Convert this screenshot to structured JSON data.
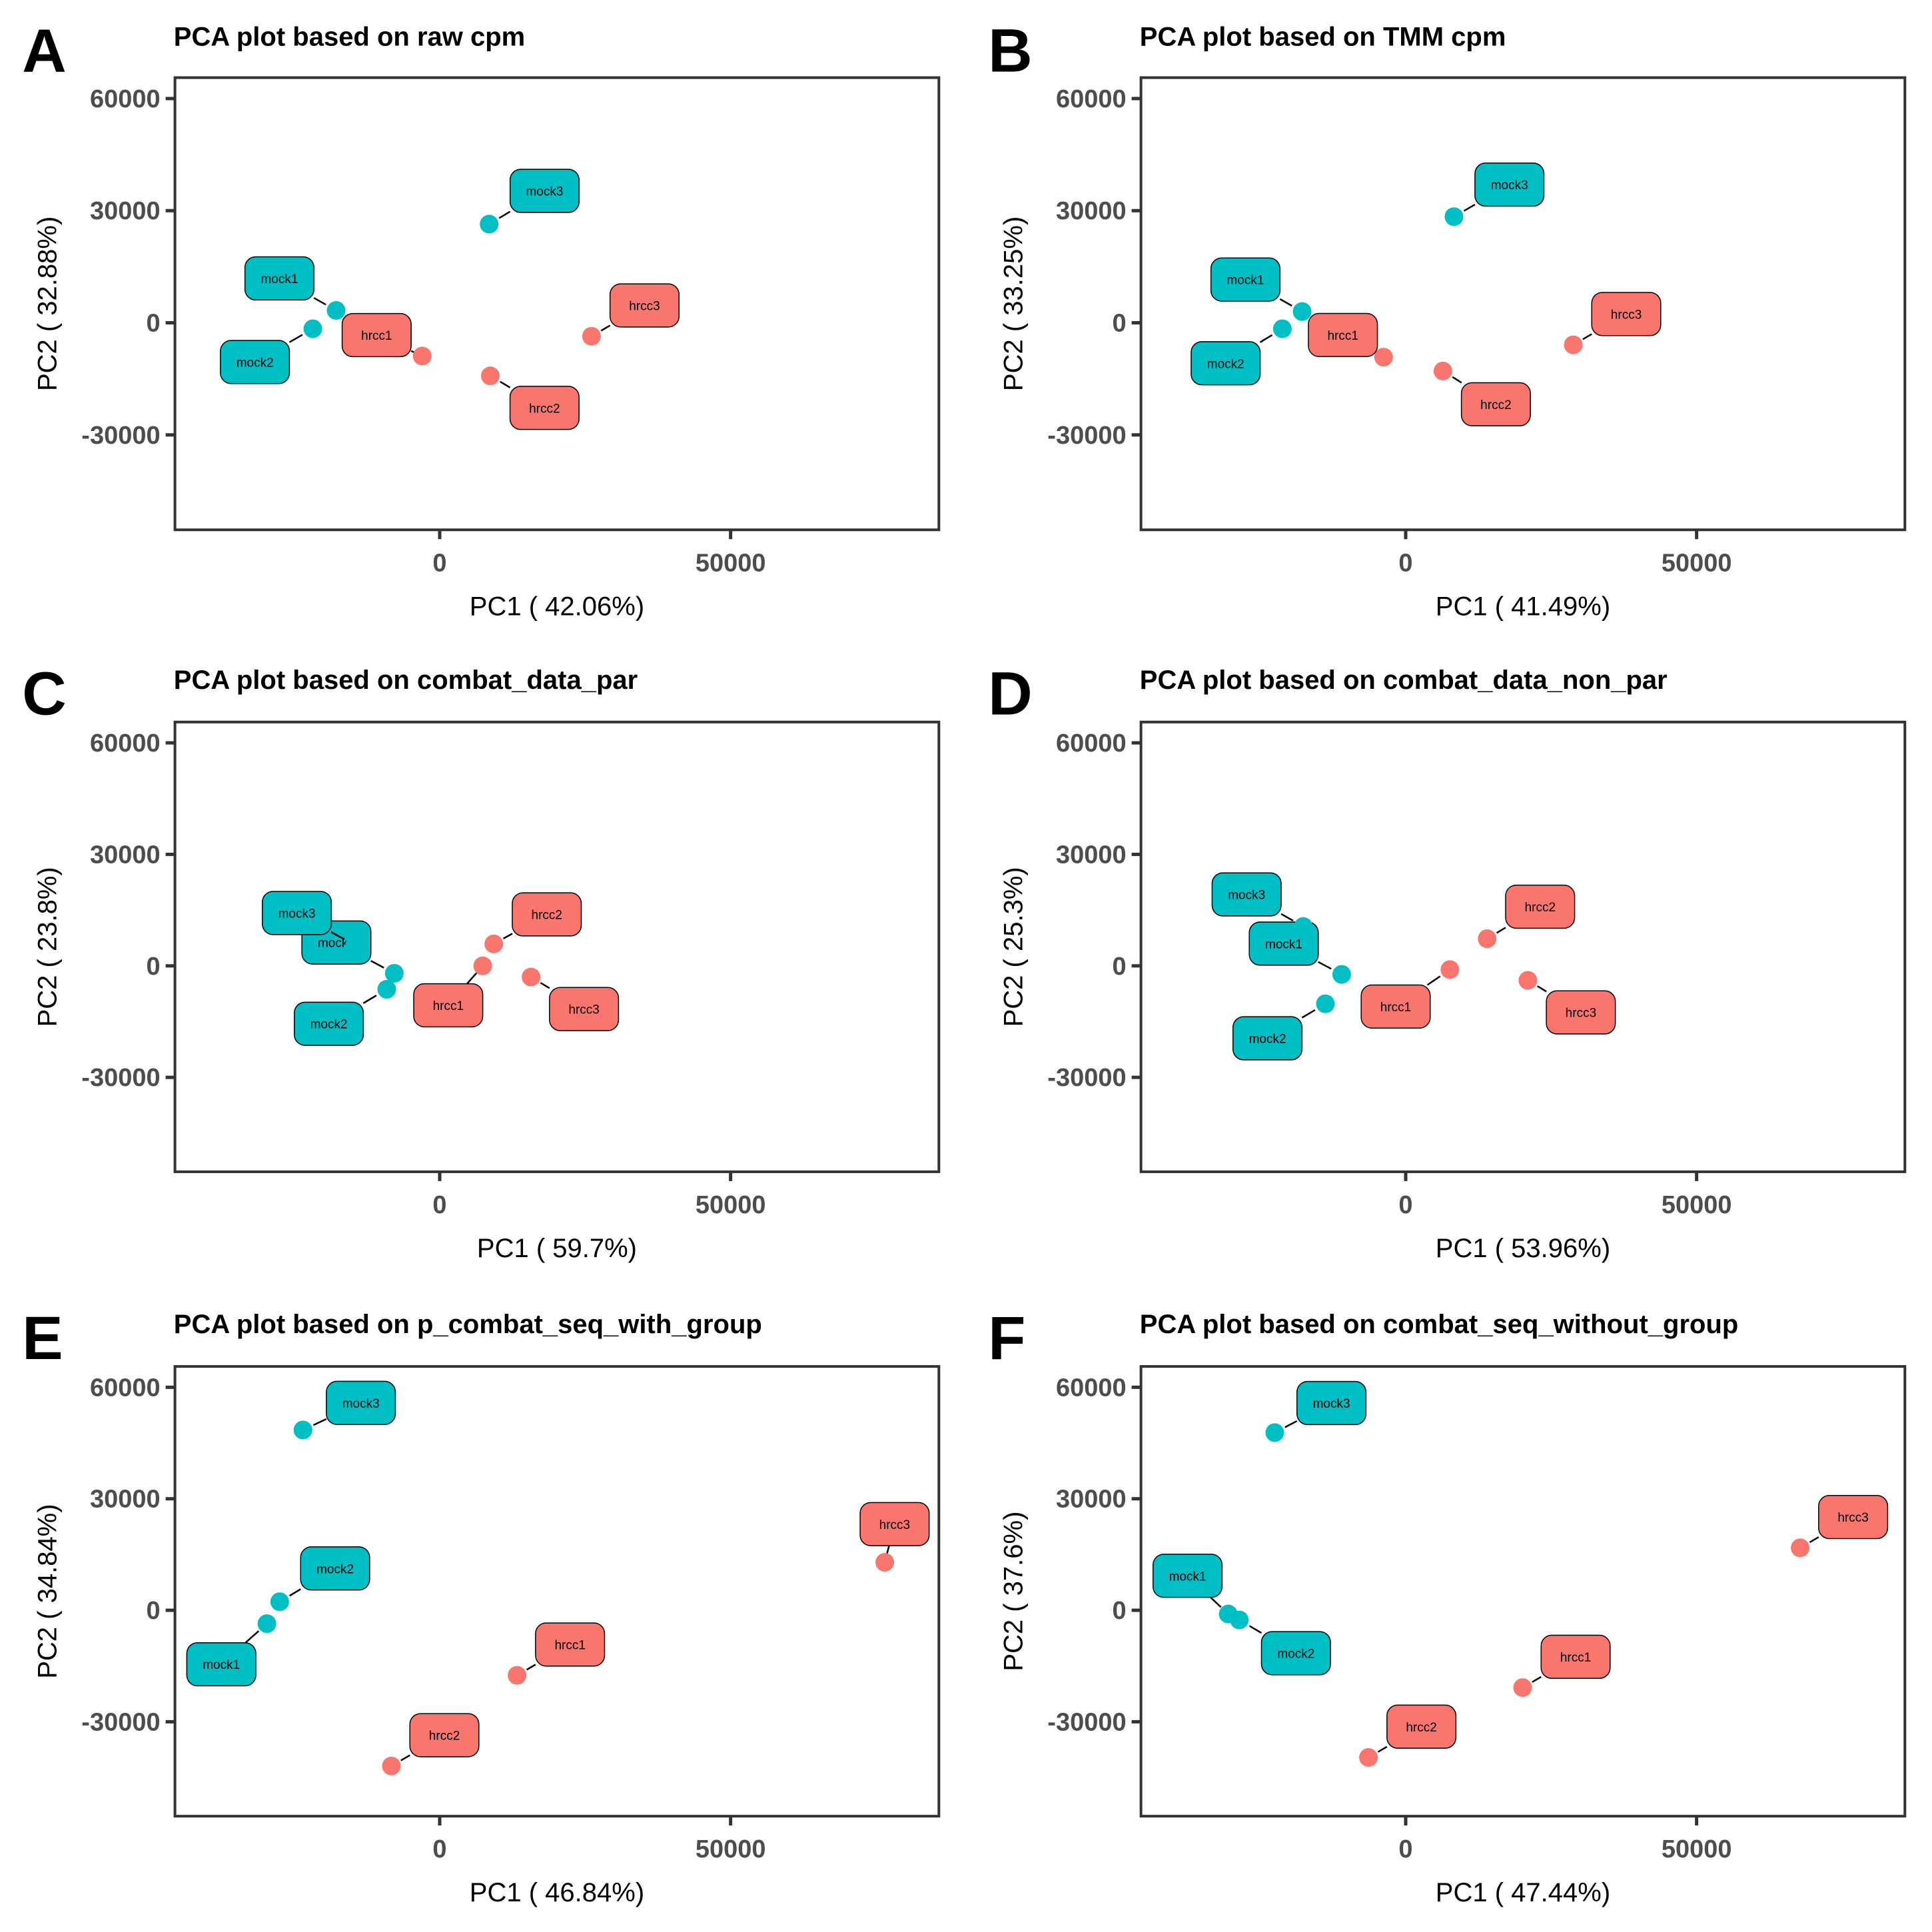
{
  "figure": {
    "group_colors": {
      "mock": "#00BFC4",
      "hrcc": "#F8766D"
    }
  },
  "chart_data": [
    {
      "type": "scatter",
      "panel": "A",
      "title": "PCA plot based on raw cpm",
      "xlabel": "PC1 ( 42.06%)",
      "ylabel": "PC2 ( 32.88%)",
      "xlim": [
        -45500,
        85800
      ],
      "ylim": [
        -55400,
        65600
      ],
      "xticks": [
        0,
        50000
      ],
      "xtick_labels": [
        "0",
        "50000"
      ],
      "yticks": [
        -30000,
        0,
        30000,
        60000
      ],
      "ytick_labels": [
        "-30000",
        "0",
        "30000",
        "60000"
      ],
      "grid": false,
      "points": [
        {
          "label": "mock1",
          "group": "mock",
          "x": -17800,
          "y": 3300
        },
        {
          "label": "mock2",
          "group": "mock",
          "x": -21800,
          "y": -1600
        },
        {
          "label": "mock3",
          "group": "mock",
          "x": 8500,
          "y": 26400
        },
        {
          "label": "hrcc1",
          "group": "hrcc",
          "x": -3000,
          "y": -8900
        },
        {
          "label": "hrcc2",
          "group": "hrcc",
          "x": 8700,
          "y": -14200
        },
        {
          "label": "hrcc3",
          "group": "hrcc",
          "x": 26100,
          "y": -3600
        }
      ]
    },
    {
      "type": "scatter",
      "panel": "B",
      "title": "PCA plot based on TMM cpm",
      "xlabel": "PC1 ( 41.49%)",
      "ylabel": "PC2 ( 33.25%)",
      "xlim": [
        -45500,
        85800
      ],
      "ylim": [
        -55400,
        65600
      ],
      "xticks": [
        0,
        50000
      ],
      "xtick_labels": [
        "0",
        "50000"
      ],
      "yticks": [
        -30000,
        0,
        30000,
        60000
      ],
      "ytick_labels": [
        "-30000",
        "0",
        "30000",
        "60000"
      ],
      "grid": false,
      "points": [
        {
          "label": "mock1",
          "group": "mock",
          "x": -17800,
          "y": 3000
        },
        {
          "label": "mock2",
          "group": "mock",
          "x": -21200,
          "y": -1600
        },
        {
          "label": "mock3",
          "group": "mock",
          "x": 8300,
          "y": 28400
        },
        {
          "label": "hrcc1",
          "group": "hrcc",
          "x": -3800,
          "y": -9200
        },
        {
          "label": "hrcc2",
          "group": "hrcc",
          "x": 6400,
          "y": -12900
        },
        {
          "label": "hrcc3",
          "group": "hrcc",
          "x": 28800,
          "y": -5900
        }
      ]
    },
    {
      "type": "scatter",
      "panel": "C",
      "title": "PCA plot based on combat_data_par",
      "xlabel": "PC1 ( 59.7%)",
      "ylabel": "PC2 ( 23.8%)",
      "xlim": [
        -45500,
        85800
      ],
      "ylim": [
        -55400,
        65600
      ],
      "xticks": [
        0,
        50000
      ],
      "xtick_labels": [
        "0",
        "50000"
      ],
      "yticks": [
        -30000,
        0,
        30000,
        60000
      ],
      "ytick_labels": [
        "-30000",
        "0",
        "30000",
        "60000"
      ],
      "grid": false,
      "points": [
        {
          "label": "mock1",
          "group": "mock",
          "x": -7800,
          "y": -2000
        },
        {
          "label": "mock2",
          "group": "mock",
          "x": -9100,
          "y": -6300
        },
        {
          "label": "mock3",
          "group": "mock",
          "x": -14600,
          "y": 5600
        },
        {
          "label": "hrcc1",
          "group": "hrcc",
          "x": 7400,
          "y": 0
        },
        {
          "label": "hrcc2",
          "group": "hrcc",
          "x": 9300,
          "y": 5900
        },
        {
          "label": "hrcc3",
          "group": "hrcc",
          "x": 15700,
          "y": -3000
        }
      ]
    },
    {
      "type": "scatter",
      "panel": "D",
      "title": "PCA plot based on combat_data_non_par",
      "xlabel": "PC1 ( 53.96%)",
      "ylabel": "PC2 ( 25.3%)",
      "xlim": [
        -45500,
        85800
      ],
      "ylim": [
        -55400,
        65600
      ],
      "xticks": [
        0,
        50000
      ],
      "xtick_labels": [
        "0",
        "50000"
      ],
      "yticks": [
        -30000,
        0,
        30000,
        60000
      ],
      "ytick_labels": [
        "-30000",
        "0",
        "30000",
        "60000"
      ],
      "grid": false,
      "points": [
        {
          "label": "mock1",
          "group": "mock",
          "x": -11000,
          "y": -2300
        },
        {
          "label": "mock2",
          "group": "mock",
          "x": -13800,
          "y": -10200
        },
        {
          "label": "mock3",
          "group": "mock",
          "x": -17600,
          "y": 10600
        },
        {
          "label": "hrcc1",
          "group": "hrcc",
          "x": 7600,
          "y": -1000
        },
        {
          "label": "hrcc2",
          "group": "hrcc",
          "x": 14000,
          "y": 7300
        },
        {
          "label": "hrcc3",
          "group": "hrcc",
          "x": 21000,
          "y": -3900
        }
      ]
    },
    {
      "type": "scatter",
      "panel": "E",
      "title": "PCA plot based on p_combat_seq_with_group",
      "xlabel": "PC1 ( 46.84%)",
      "ylabel": "PC2 ( 34.84%)",
      "xlim": [
        -45500,
        85800
      ],
      "ylim": [
        -55400,
        65600
      ],
      "xticks": [
        0,
        50000
      ],
      "xtick_labels": [
        "0",
        "50000"
      ],
      "yticks": [
        -30000,
        0,
        30000,
        60000
      ],
      "ytick_labels": [
        "-30000",
        "0",
        "30000",
        "60000"
      ],
      "grid": false,
      "points": [
        {
          "label": "mock1",
          "group": "mock",
          "x": -29700,
          "y": -3600
        },
        {
          "label": "mock2",
          "group": "mock",
          "x": -27500,
          "y": 2300
        },
        {
          "label": "mock3",
          "group": "mock",
          "x": -23500,
          "y": 48500
        },
        {
          "label": "hrcc1",
          "group": "hrcc",
          "x": 13300,
          "y": -17500
        },
        {
          "label": "hrcc2",
          "group": "hrcc",
          "x": -8300,
          "y": -41900
        },
        {
          "label": "hrcc3",
          "group": "hrcc",
          "x": 76500,
          "y": 12900
        }
      ]
    },
    {
      "type": "scatter",
      "panel": "F",
      "title": "PCA plot based on combat_seq_without_group",
      "xlabel": "PC1 ( 47.44%)",
      "ylabel": "PC2 ( 37.6%)",
      "xlim": [
        -45500,
        85800
      ],
      "ylim": [
        -55400,
        65600
      ],
      "xticks": [
        0,
        50000
      ],
      "xtick_labels": [
        "0",
        "50000"
      ],
      "yticks": [
        -30000,
        0,
        30000,
        60000
      ],
      "ytick_labels": [
        "-30000",
        "0",
        "30000",
        "60000"
      ],
      "grid": false,
      "points": [
        {
          "label": "mock1",
          "group": "mock",
          "x": -30500,
          "y": -1000
        },
        {
          "label": "mock2",
          "group": "mock",
          "x": -28600,
          "y": -2600
        },
        {
          "label": "mock3",
          "group": "mock",
          "x": -22500,
          "y": 47800
        },
        {
          "label": "hrcc1",
          "group": "hrcc",
          "x": 20100,
          "y": -20800
        },
        {
          "label": "hrcc2",
          "group": "hrcc",
          "x": -6400,
          "y": -39600
        },
        {
          "label": "hrcc3",
          "group": "hrcc",
          "x": 67800,
          "y": 16800
        }
      ]
    }
  ]
}
